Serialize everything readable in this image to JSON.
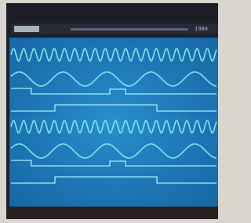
{
  "header": {
    "text": "1980"
  }
}
